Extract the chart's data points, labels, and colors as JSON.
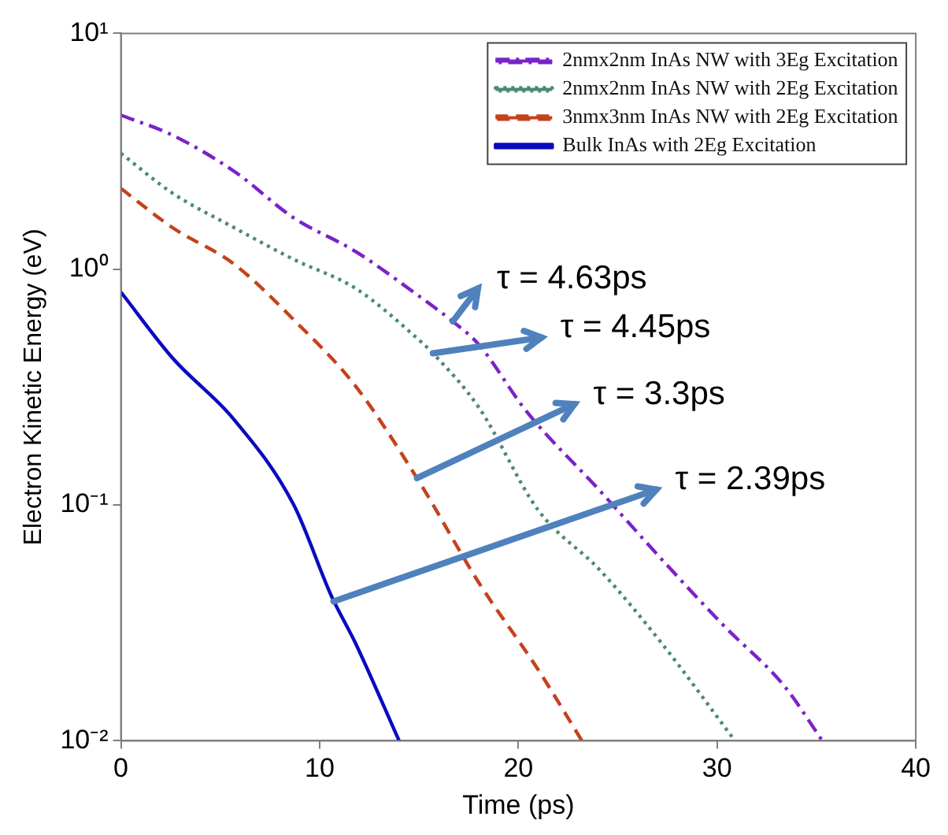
{
  "chart_data": {
    "type": "line",
    "xlabel": "Time (ps)",
    "ylabel": "Electron Kinetic Energy (eV)",
    "log": "y",
    "xlim": [
      0,
      40
    ],
    "xticks": [
      0,
      10,
      20,
      30,
      40
    ],
    "ylim": [
      0.01,
      10
    ],
    "yticks": [
      {
        "value": 0.01,
        "label": "10⁻²"
      },
      {
        "value": 0.1,
        "label": "10⁻¹"
      },
      {
        "value": 1,
        "label": "10⁰"
      },
      {
        "value": 10,
        "label": "10¹"
      }
    ],
    "grid": false,
    "legend": "top right",
    "marker": "none",
    "series": [
      {
        "name": "2nmx2nm InAs NW with 3Eg Excitation",
        "color": "#7b22c8",
        "line_style": "dashdot",
        "x": [
          0,
          2.6,
          5.7,
          8.7,
          11.8,
          14.9,
          16.7,
          18,
          20.4,
          24.1,
          27.2,
          30.3,
          33.4,
          35.3
        ],
        "values": [
          4.5,
          3.7,
          2.6,
          1.65,
          1.19,
          0.78,
          0.6,
          0.48,
          0.25,
          0.115,
          0.059,
          0.031,
          0.017,
          0.01
        ]
      },
      {
        "name": "2nmx2nm InAs NW with 2Eg Excitation",
        "color": "#4a8a78",
        "line_style": "dotted",
        "x": [
          0,
          2.6,
          5.7,
          8.7,
          11.8,
          14.9,
          15.7,
          18,
          21,
          24.1,
          27.2,
          30.9
        ],
        "values": [
          3.1,
          2.1,
          1.5,
          1.1,
          0.83,
          0.51,
          0.44,
          0.26,
          0.095,
          0.053,
          0.026,
          0.01
        ]
      },
      {
        "name": "3nmx3nm InAs NW with 2Eg Excitation",
        "color": "#c4421c",
        "line_style": "dashed",
        "x": [
          0,
          2.6,
          5.7,
          8.7,
          11.8,
          14.9,
          18,
          21,
          23.2
        ],
        "values": [
          2.2,
          1.5,
          1.05,
          0.61,
          0.32,
          0.13,
          0.047,
          0.02,
          0.01
        ]
      },
      {
        "name": "Bulk InAs with 2Eg Excitation",
        "color": "#0a0ac0",
        "line_style": "solid",
        "x": [
          0,
          2.6,
          5.7,
          8.7,
          10.6,
          11.8,
          14
        ],
        "values": [
          0.8,
          0.42,
          0.23,
          0.1,
          0.041,
          0.026,
          0.01
        ]
      }
    ],
    "annotations": [
      {
        "text": "τ = 4.63ps",
        "x": 16.7,
        "y": 0.6
      },
      {
        "text": "τ = 4.45ps",
        "x": 15.7,
        "y": 0.44
      },
      {
        "text": "τ = 3.3ps",
        "x": 14.9,
        "y": 0.13
      },
      {
        "text": "τ = 2.39ps",
        "x": 10.7,
        "y": 0.039
      }
    ]
  }
}
